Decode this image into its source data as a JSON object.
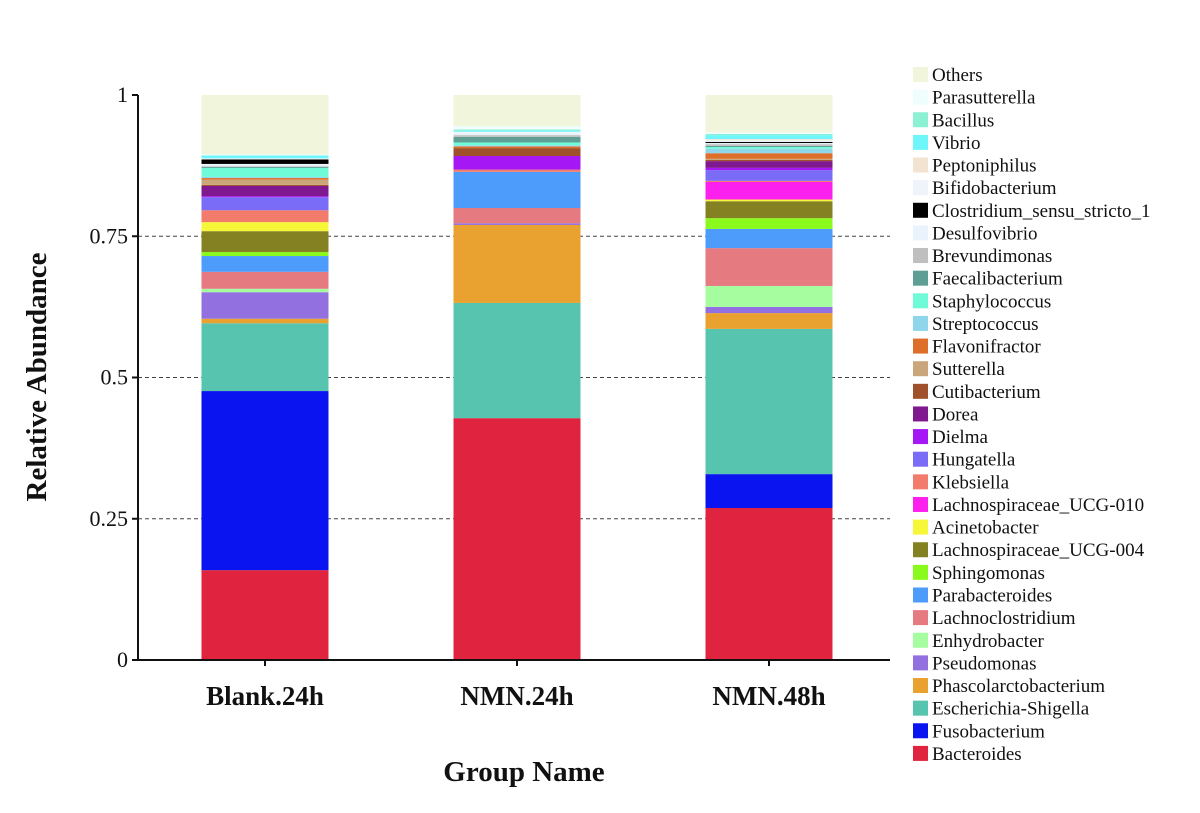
{
  "chart_data": {
    "type": "bar",
    "stacked": true,
    "title": "",
    "xlabel": "Group Name",
    "ylabel": "Relative Abundance",
    "ylim": [
      0,
      1
    ],
    "yticks": [
      0,
      0.25,
      0.5,
      0.75,
      1
    ],
    "ytick_labels": [
      "0",
      "0.25",
      "0.5",
      "0.75",
      "1"
    ],
    "grid": "dashed horizontal at 0.25, 0.5, 0.75",
    "legend_placement": "right",
    "categories": [
      "Blank.24h",
      "NMN.24h",
      "NMN.48h"
    ],
    "series": [
      {
        "name": "Bacteroides",
        "color": "#e0233e",
        "values": [
          0.159,
          0.428,
          0.269
        ]
      },
      {
        "name": "Fusobacterium",
        "color": "#0a14f0",
        "values": [
          0.317,
          0.0,
          0.06
        ]
      },
      {
        "name": "Escherichia-Shigella",
        "color": "#56c4ae",
        "values": [
          0.12,
          0.204,
          0.257
        ]
      },
      {
        "name": "Phascolarctobacterium",
        "color": "#e9a22f",
        "values": [
          0.008,
          0.138,
          0.028
        ]
      },
      {
        "name": "Pseudomonas",
        "color": "#9370e0",
        "values": [
          0.047,
          0.003,
          0.011
        ]
      },
      {
        "name": "Enhydrobacter",
        "color": "#a6fda0",
        "values": [
          0.006,
          0.0,
          0.037
        ]
      },
      {
        "name": "Lachnoclostridium",
        "color": "#e57a80",
        "values": [
          0.03,
          0.027,
          0.067
        ]
      },
      {
        "name": "Parabacteroides",
        "color": "#4d9bfa",
        "values": [
          0.028,
          0.064,
          0.034
        ]
      },
      {
        "name": "Sphingomonas",
        "color": "#8afa1c",
        "values": [
          0.007,
          0.0,
          0.019
        ]
      },
      {
        "name": "Lachnospiraceae_UCG-004",
        "color": "#838121",
        "values": [
          0.037,
          0.0,
          0.03
        ]
      },
      {
        "name": "Acinetobacter",
        "color": "#f7f73a",
        "values": [
          0.016,
          0.0,
          0.003
        ]
      },
      {
        "name": "Lachnospiraceae_UCG-010",
        "color": "#fc20ee",
        "values": [
          0.0,
          0.0,
          0.031
        ]
      },
      {
        "name": "Klebsiella",
        "color": "#f27b6c",
        "values": [
          0.021,
          0.004,
          0.002
        ]
      },
      {
        "name": "Hungatella",
        "color": "#7b6cf7",
        "values": [
          0.023,
          0.0,
          0.019
        ]
      },
      {
        "name": "Dielma",
        "color": "#a518f5",
        "values": [
          0.002,
          0.024,
          0.004
        ]
      },
      {
        "name": "Dorea",
        "color": "#80188f",
        "values": [
          0.018,
          0.0,
          0.012
        ]
      },
      {
        "name": "Cutibacterium",
        "color": "#a0502a",
        "values": [
          0.002,
          0.014,
          0.002
        ]
      },
      {
        "name": "Sutterella",
        "color": "#c9a77a",
        "values": [
          0.009,
          0.0,
          0.002
        ]
      },
      {
        "name": "Flavonifractor",
        "color": "#dd6f2b",
        "values": [
          0.003,
          0.003,
          0.01
        ]
      },
      {
        "name": "Streptococcus",
        "color": "#90d6ea",
        "values": [
          0.002,
          0.002,
          0.008
        ]
      },
      {
        "name": "Staphylococcus",
        "color": "#70fbd8",
        "values": [
          0.016,
          0.005,
          0.003
        ]
      },
      {
        "name": "Faecalibacterium",
        "color": "#5e9e94",
        "values": [
          0.002,
          0.01,
          0.002
        ]
      },
      {
        "name": "Brevundimonas",
        "color": "#bfbfbf",
        "values": [
          0.001,
          0.003,
          0.003
        ]
      },
      {
        "name": "Desulfovibrio",
        "color": "#eaf3fb",
        "values": [
          0.004,
          0.004,
          0.002
        ]
      },
      {
        "name": "Clostridium_sensu_stricto_1",
        "color": "#000000",
        "values": [
          0.008,
          0.0,
          0.002
        ]
      },
      {
        "name": "Bifidobacterium",
        "color": "#eef4fa",
        "values": [
          0.002,
          0.002,
          0.003
        ]
      },
      {
        "name": "Peptoniphilus",
        "color": "#f3e4d2",
        "values": [
          0.0,
          0.0,
          0.002
        ]
      },
      {
        "name": "Vibrio",
        "color": "#6ef6fa",
        "values": [
          0.005,
          0.002,
          0.007
        ]
      },
      {
        "name": "Bacillus",
        "color": "#8cf0d2",
        "values": [
          0.0,
          0.002,
          0.002
        ]
      },
      {
        "name": "Parasutterella",
        "color": "#effdfd",
        "values": [
          0.002,
          0.006,
          0.003
        ]
      },
      {
        "name": "Others",
        "color": "#f0f5dc",
        "values": [
          0.105,
          0.055,
          0.066
        ]
      }
    ]
  }
}
